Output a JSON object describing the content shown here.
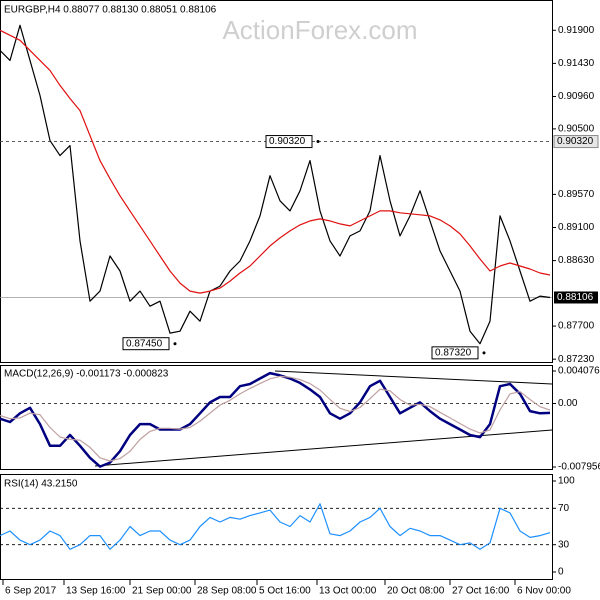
{
  "chart_data": [
    {
      "type": "line",
      "title": "EURGBP,H4 0.88077 0.88130 0.88051 0.88106",
      "watermark": "ActionForex.com",
      "ylim": [
        0.8719,
        0.9233
      ],
      "yticks": [
        {
          "value": 0.919,
          "label": "0.91900"
        },
        {
          "value": 0.9143,
          "label": "0.91430"
        },
        {
          "value": 0.9096,
          "label": "0.90960"
        },
        {
          "value": 0.905,
          "label": "0.90500"
        },
        {
          "value": 0.8957,
          "label": "0.89570"
        },
        {
          "value": 0.891,
          "label": "0.89100"
        },
        {
          "value": 0.8863,
          "label": "0.88630"
        },
        {
          "value": 0.877,
          "label": "0.87700"
        },
        {
          "value": 0.8723,
          "label": "0.87230"
        }
      ],
      "level": {
        "value": 0.9032,
        "label": "0.90320"
      },
      "current_price": {
        "value": 0.88106,
        "label": "0.88106"
      },
      "annotations": [
        {
          "x": 31.8,
          "value": 0.9032,
          "label": "0.90320"
        },
        {
          "x": 17.5,
          "value": 0.8745,
          "label": "0.87450"
        },
        {
          "x": 48.4,
          "value": 0.8732,
          "label": "0.87320"
        }
      ],
      "series": [
        {
          "color": "#000000",
          "values": [
            0.91615,
            0.91473,
            0.91971,
            0.91473,
            0.90974,
            0.90333,
            0.9012,
            0.90262,
            0.88909,
            0.88054,
            0.88197,
            0.88695,
            0.88482,
            0.88054,
            0.88197,
            0.87983,
            0.88054,
            0.876,
            0.87627,
            0.87912,
            0.8777,
            0.88197,
            0.88268,
            0.88482,
            0.88624,
            0.88909,
            0.89265,
            0.89835,
            0.89479,
            0.89336,
            0.89621,
            0.9005,
            0.89336,
            0.88909,
            0.88695,
            0.8898,
            0.89051,
            0.89336,
            0.9012,
            0.89479,
            0.8898,
            0.89265,
            0.89621,
            0.89194,
            0.88767,
            0.88482,
            0.88197,
            0.87627,
            0.8745,
            0.8777,
            0.89265,
            0.88909,
            0.88482,
            0.88054,
            0.88126,
            0.88106
          ]
        },
        {
          "color": "#e01010",
          "values": [
            0.919,
            0.91829,
            0.91758,
            0.91615,
            0.91473,
            0.9133,
            0.91117,
            0.90931,
            0.9076,
            0.90405,
            0.90049,
            0.89792,
            0.8955,
            0.89336,
            0.89123,
            0.88909,
            0.88695,
            0.88482,
            0.88311,
            0.88197,
            0.88168,
            0.88197,
            0.8824,
            0.88339,
            0.88453,
            0.88553,
            0.88695,
            0.88838,
            0.88952,
            0.89051,
            0.89137,
            0.89194,
            0.89222,
            0.89194,
            0.89151,
            0.89123,
            0.89194,
            0.89265,
            0.89336,
            0.89336,
            0.89308,
            0.89294,
            0.8928,
            0.89265,
            0.89208,
            0.89123,
            0.89009,
            0.88838,
            0.88653,
            0.88482,
            0.88553,
            0.88596,
            0.88553,
            0.8851,
            0.88453,
            0.88425
          ]
        }
      ]
    },
    {
      "type": "line",
      "title": "MACD(12,26,9) -0.001173 -0.000823",
      "ylim": [
        -0.007956,
        0.004076
      ],
      "yticks": [
        {
          "value": 0.004076,
          "label": "0.004076"
        },
        {
          "value": 0,
          "label": "0.00"
        },
        {
          "value": -0.007956,
          "label": "-0.007956"
        }
      ],
      "series": [
        {
          "color": "#000080",
          "values": [
            -0.0019,
            -0.00231,
            -0.00122,
            -0.00054,
            -0.00258,
            -0.0053,
            -0.0053,
            -0.00394,
            -0.0053,
            -0.0068,
            -0.0079,
            -0.0074,
            -0.00598,
            -0.00394,
            -0.00258,
            -0.00258,
            -0.00326,
            -0.00326,
            -0.00326,
            -0.00258,
            -0.00122,
            0.00014,
            0.00082,
            0.00082,
            0.00217,
            0.00245,
            0.00313,
            0.00381,
            0.00353,
            0.00313,
            0.00258,
            0.00177,
            0.00082,
            -0.00122,
            -0.0019,
            -0.00122,
            0.00014,
            0.00217,
            0.00285,
            0.00082,
            -0.00122,
            -0.00054,
            0.00014,
            -0.00095,
            -0.0019,
            -0.00258,
            -0.00326,
            -0.00394,
            -0.00421,
            -0.00258,
            0.00217,
            0.00245,
            0.00122,
            -0.00095,
            -0.00122,
            -0.00117
          ]
        },
        {
          "color": "#c0a0a0",
          "values": [
            -0.0015,
            -0.0019,
            -0.0018,
            -0.0012,
            -0.0014,
            -0.003,
            -0.0042,
            -0.0045,
            -0.0046,
            -0.0055,
            -0.0068,
            -0.0072,
            -0.0069,
            -0.006,
            -0.0045,
            -0.0035,
            -0.0031,
            -0.0031,
            -0.0032,
            -0.003,
            -0.0022,
            -0.0012,
            -0.0002,
            0.0004,
            0.0012,
            0.0019,
            0.0025,
            0.0031,
            0.0034,
            0.0033,
            0.003,
            0.0025,
            0.0017,
            0.0005,
            -0.0006,
            -0.001,
            -0.0005,
            0.0006,
            0.0018,
            0.0016,
            0.0005,
            -0.0002,
            -0.0001,
            -0.0004,
            -0.0011,
            -0.0018,
            -0.0025,
            -0.0032,
            -0.0037,
            -0.0033,
            -0.0008,
            0.0012,
            0.0015,
            0.0005,
            -0.0004,
            -0.00082
          ]
        }
      ]
    },
    {
      "type": "line",
      "title": "RSI(14) 43.2150",
      "ylim": [
        0,
        100
      ],
      "yticks": [
        100,
        70,
        30,
        0
      ],
      "xlim": [
        0,
        55.2
      ],
      "xticks": [
        {
          "value": 0.3,
          "label": "6 Sep 2017"
        },
        {
          "value": 6.4,
          "label": "13 Sep 16:00"
        },
        {
          "value": 13,
          "label": "21 Sep 00:00"
        },
        {
          "value": 19.5,
          "label": "28 Sep 08:00"
        },
        {
          "value": 25.7,
          "label": "5 Oct 16:00"
        },
        {
          "value": 31.7,
          "label": "13 Oct 00:00"
        },
        {
          "value": 38.5,
          "label": "20 Oct 08:00"
        },
        {
          "value": 45,
          "label": "27 Oct 16:00"
        },
        {
          "value": 51.5,
          "label": "6 Nov 00:00"
        }
      ],
      "series": [
        {
          "color": "#1e90ff",
          "values": [
            40,
            45,
            35,
            30,
            35,
            45,
            40,
            25,
            30,
            40,
            40,
            25,
            35,
            50,
            40,
            45,
            45,
            35,
            30,
            35,
            50,
            60,
            55,
            60,
            58,
            62,
            65,
            68,
            55,
            50,
            62,
            55,
            75,
            42,
            40,
            45,
            55,
            60,
            70,
            50,
            40,
            48,
            45,
            40,
            40,
            35,
            30,
            32,
            25,
            32,
            70,
            65,
            45,
            38,
            40,
            43.215
          ]
        }
      ]
    }
  ]
}
